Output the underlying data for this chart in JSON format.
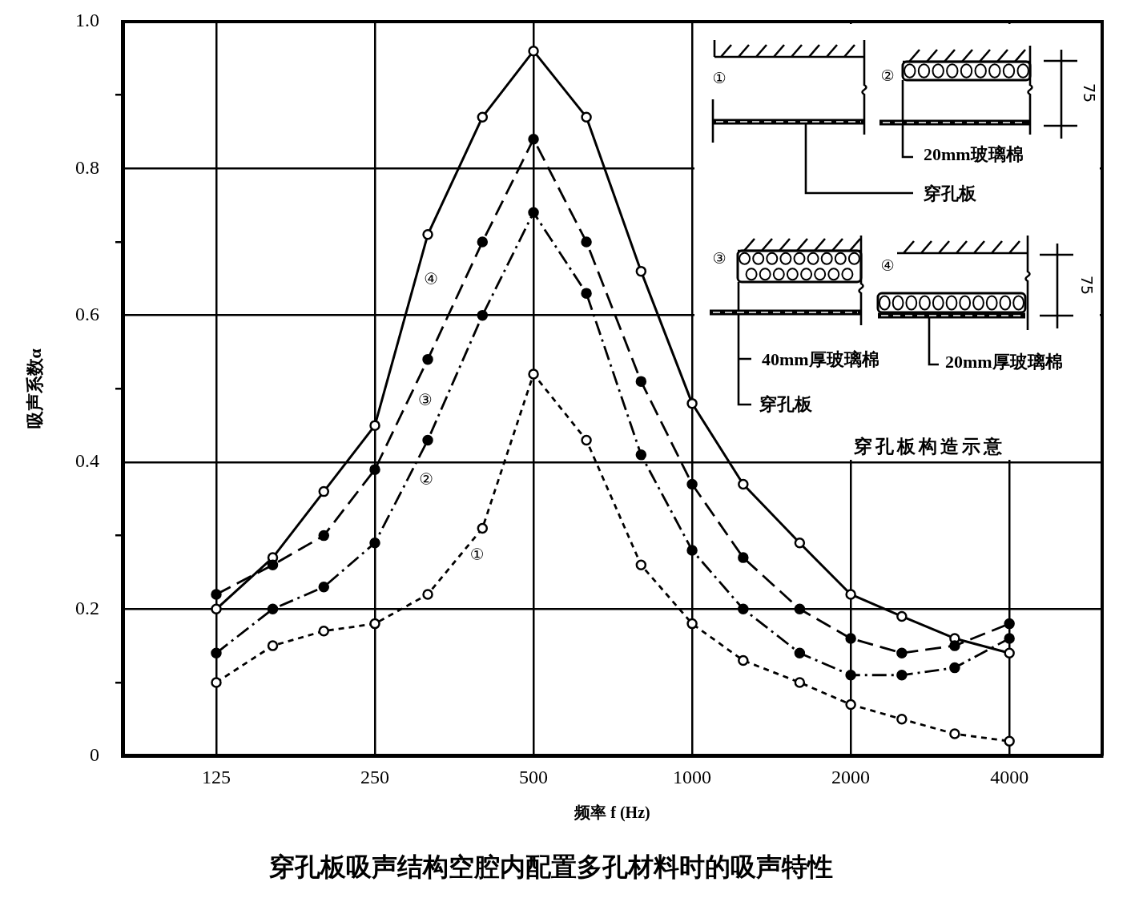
{
  "chart_data": {
    "type": "line",
    "title": "穿孔板吸声结构空腔内配置多孔材料时的吸声特性",
    "xlabel": "频率 f (Hz)",
    "ylabel": "吸声系数α",
    "x": [
      125,
      160,
      200,
      250,
      315,
      400,
      500,
      630,
      800,
      1000,
      1250,
      1600,
      2000,
      2500,
      3150,
      4000
    ],
    "series": [
      {
        "name": "①",
        "color": "#000000",
        "line_style": "dotted",
        "values": [
          0.1,
          0.15,
          0.17,
          0.18,
          0.22,
          0.31,
          0.52,
          0.43,
          0.26,
          0.18,
          0.13,
          0.1,
          0.07,
          0.05,
          0.03,
          0.02
        ]
      },
      {
        "name": "②",
        "color": "#000000",
        "line_style": "dashdot",
        "values": [
          0.14,
          0.2,
          0.23,
          0.29,
          0.43,
          0.6,
          0.74,
          0.63,
          0.41,
          0.28,
          0.2,
          0.14,
          0.11,
          0.11,
          0.12,
          0.16
        ]
      },
      {
        "name": "③",
        "color": "#000000",
        "line_style": "dashed",
        "values": [
          0.22,
          0.26,
          0.3,
          0.39,
          0.54,
          0.7,
          0.84,
          0.7,
          0.51,
          0.37,
          0.27,
          0.2,
          0.16,
          0.14,
          0.15,
          0.18
        ]
      },
      {
        "name": "④",
        "color": "#000000",
        "line_style": "solid",
        "values": [
          0.2,
          0.27,
          0.36,
          0.45,
          0.71,
          0.87,
          0.96,
          0.87,
          0.66,
          0.48,
          0.37,
          0.29,
          0.22,
          0.19,
          0.16,
          0.14
        ]
      }
    ],
    "xlim": [
      83,
      6000
    ],
    "xticks": [
      125,
      250,
      500,
      1000,
      2000,
      4000
    ],
    "ylim": [
      0,
      1
    ],
    "yticks": [
      0,
      {
        "value": 0.1,
        "label": null
      },
      0.2,
      {
        "value": 0.3,
        "label": null
      },
      0.4,
      {
        "value": 0.5,
        "label": null
      },
      0.6,
      {
        "value": 0.7,
        "label": null
      },
      0.8,
      {
        "value": 0.9,
        "label": null
      },
      {
        "value": 1,
        "label": "1.0"
      }
    ],
    "log": "x",
    "grid": true,
    "marker": "circle",
    "annotations": [
      "①",
      "②",
      "75",
      "20mm玻璃棉",
      "穿孔板",
      "③",
      "④",
      "75",
      "40mm厚玻璃棉",
      "20mm厚玻璃棉",
      "穿孔板",
      "穿孔板构造示意"
    ]
  }
}
